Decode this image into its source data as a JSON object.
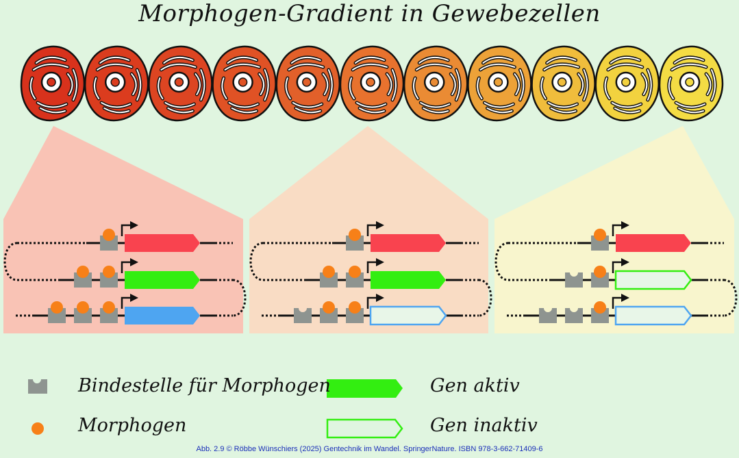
{
  "title": "Morphogen-Gradient in Gewebezellen",
  "cells": {
    "count": 11,
    "fill_colors": [
      "#d8321c",
      "#db3c1e",
      "#dd4522",
      "#e05225",
      "#e2602a",
      "#e8722e",
      "#ea8b34",
      "#eda238",
      "#f0bd3c",
      "#f2d23f",
      "#f4dc44"
    ]
  },
  "panels": [
    {
      "id": "left",
      "background": "#f9c3b5",
      "rows": [
        {
          "sites": [
            "bound"
          ],
          "gene": "red"
        },
        {
          "sites": [
            "bound",
            "bound"
          ],
          "gene": "green"
        },
        {
          "sites": [
            "bound",
            "bound",
            "bound"
          ],
          "gene": "blue"
        }
      ]
    },
    {
      "id": "middle",
      "background": "#f9dcc4",
      "rows": [
        {
          "sites": [
            "bound"
          ],
          "gene": "red"
        },
        {
          "sites": [
            "bound",
            "bound"
          ],
          "gene": "green"
        },
        {
          "sites": [
            "empty",
            "bound",
            "bound"
          ],
          "gene": "blue-inactive"
        }
      ]
    },
    {
      "id": "right",
      "background": "#f8f5cd",
      "rows": [
        {
          "sites": [
            "bound"
          ],
          "gene": "red"
        },
        {
          "sites": [
            "empty",
            "bound"
          ],
          "gene": "green-inactive"
        },
        {
          "sites": [
            "empty",
            "empty",
            "bound"
          ],
          "gene": "blue-inactive"
        }
      ]
    }
  ],
  "colors": {
    "red": "#f9434f",
    "green": "#33ee11",
    "blue": "#4ea5f1",
    "morphogen": "#f78018",
    "site": "#8e9490"
  },
  "legend": {
    "binding_site": "Bindestelle für Morphogen",
    "morphogen": "Morphogen",
    "gene_active": "Gen aktiv",
    "gene_inactive": "Gen inaktiv"
  },
  "caption": "Abb. 2.9 © Röbbe Wünschiers (2025) Gentechnik im Wandel. SpringerNature. ISBN 978-3-662-71409-6"
}
